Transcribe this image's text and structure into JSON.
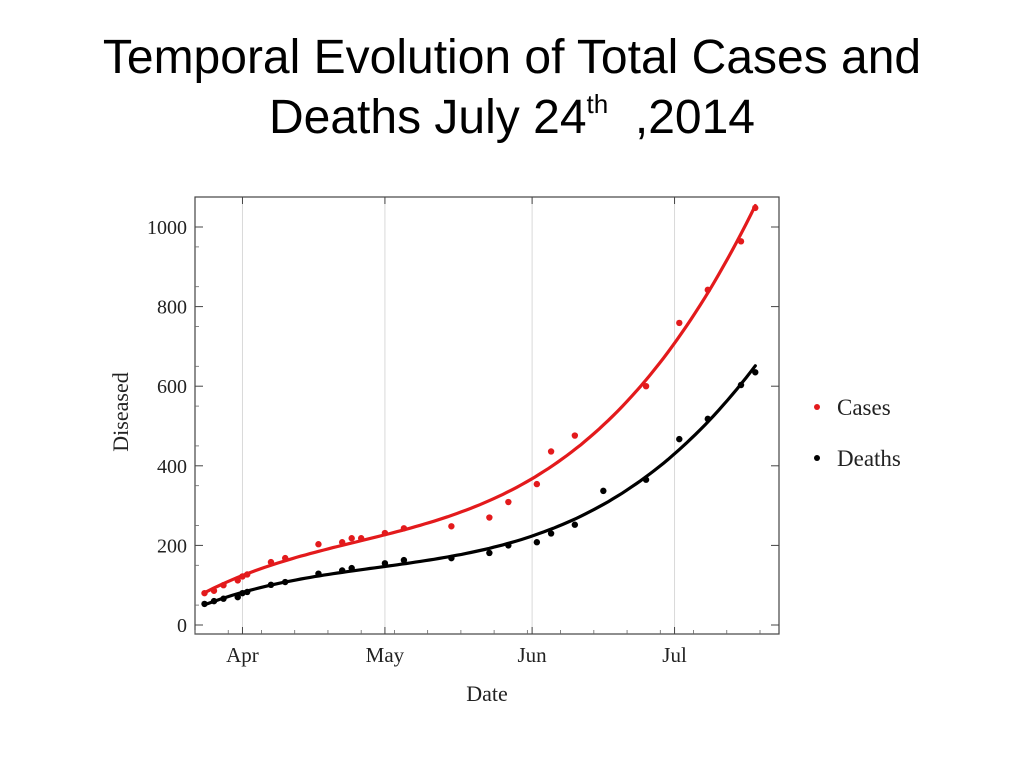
{
  "slide": {
    "title_line1": "Temporal Evolution of Total Cases and",
    "title_line2_main": "Deaths July 24",
    "title_line2_sup": "th",
    "title_line2_tail": ",2014"
  },
  "chart_data": {
    "type": "scatter",
    "title": "",
    "xlabel": "Date",
    "ylabel": "Diseased",
    "x_axis": {
      "type": "date",
      "range": [
        "2014-03-22",
        "2014-07-23"
      ],
      "ticks": [
        {
          "date": "2014-04-01",
          "label": "Apr"
        },
        {
          "date": "2014-05-01",
          "label": "May"
        },
        {
          "date": "2014-06-01",
          "label": "Jun"
        },
        {
          "date": "2014-07-01",
          "label": "Jul"
        }
      ],
      "vertical_grid": true
    },
    "y_axis": {
      "range": [
        0,
        1000
      ],
      "ticks": [
        0,
        200,
        400,
        600,
        800,
        1000
      ]
    },
    "legend_position": "right",
    "series": [
      {
        "name": "Cases",
        "color": "#e31a1c",
        "fit_curve": true,
        "points": [
          {
            "x": "2014-03-24",
            "y": 80
          },
          {
            "x": "2014-03-26",
            "y": 86
          },
          {
            "x": "2014-03-28",
            "y": 100
          },
          {
            "x": "2014-03-31",
            "y": 112
          },
          {
            "x": "2014-04-01",
            "y": 122
          },
          {
            "x": "2014-04-02",
            "y": 127
          },
          {
            "x": "2014-04-07",
            "y": 158
          },
          {
            "x": "2014-04-10",
            "y": 168
          },
          {
            "x": "2014-04-17",
            "y": 203
          },
          {
            "x": "2014-04-22",
            "y": 208
          },
          {
            "x": "2014-04-24",
            "y": 218
          },
          {
            "x": "2014-04-26",
            "y": 218
          },
          {
            "x": "2014-05-01",
            "y": 231
          },
          {
            "x": "2014-05-05",
            "y": 243
          },
          {
            "x": "2014-05-15",
            "y": 248
          },
          {
            "x": "2014-05-23",
            "y": 270
          },
          {
            "x": "2014-05-27",
            "y": 309
          },
          {
            "x": "2014-06-02",
            "y": 354
          },
          {
            "x": "2014-06-05",
            "y": 436
          },
          {
            "x": "2014-06-10",
            "y": 476
          },
          {
            "x": "2014-06-25",
            "y": 600
          },
          {
            "x": "2014-07-02",
            "y": 759
          },
          {
            "x": "2014-07-08",
            "y": 842
          },
          {
            "x": "2014-07-15",
            "y": 964
          },
          {
            "x": "2014-07-18",
            "y": 1048
          }
        ]
      },
      {
        "name": "Deaths",
        "color": "#000000",
        "fit_curve": true,
        "points": [
          {
            "x": "2014-03-24",
            "y": 53
          },
          {
            "x": "2014-03-26",
            "y": 60
          },
          {
            "x": "2014-03-28",
            "y": 66
          },
          {
            "x": "2014-03-31",
            "y": 70
          },
          {
            "x": "2014-04-01",
            "y": 80
          },
          {
            "x": "2014-04-02",
            "y": 83
          },
          {
            "x": "2014-04-07",
            "y": 101
          },
          {
            "x": "2014-04-10",
            "y": 108
          },
          {
            "x": "2014-04-17",
            "y": 129
          },
          {
            "x": "2014-04-22",
            "y": 137
          },
          {
            "x": "2014-04-24",
            "y": 143
          },
          {
            "x": "2014-05-01",
            "y": 155
          },
          {
            "x": "2014-05-05",
            "y": 163
          },
          {
            "x": "2014-05-15",
            "y": 168
          },
          {
            "x": "2014-05-23",
            "y": 181
          },
          {
            "x": "2014-05-27",
            "y": 200
          },
          {
            "x": "2014-06-02",
            "y": 208
          },
          {
            "x": "2014-06-05",
            "y": 230
          },
          {
            "x": "2014-06-10",
            "y": 252
          },
          {
            "x": "2014-06-16",
            "y": 337
          },
          {
            "x": "2014-06-25",
            "y": 365
          },
          {
            "x": "2014-07-02",
            "y": 467
          },
          {
            "x": "2014-07-08",
            "y": 518
          },
          {
            "x": "2014-07-15",
            "y": 603
          },
          {
            "x": "2014-07-18",
            "y": 635
          }
        ]
      }
    ]
  }
}
